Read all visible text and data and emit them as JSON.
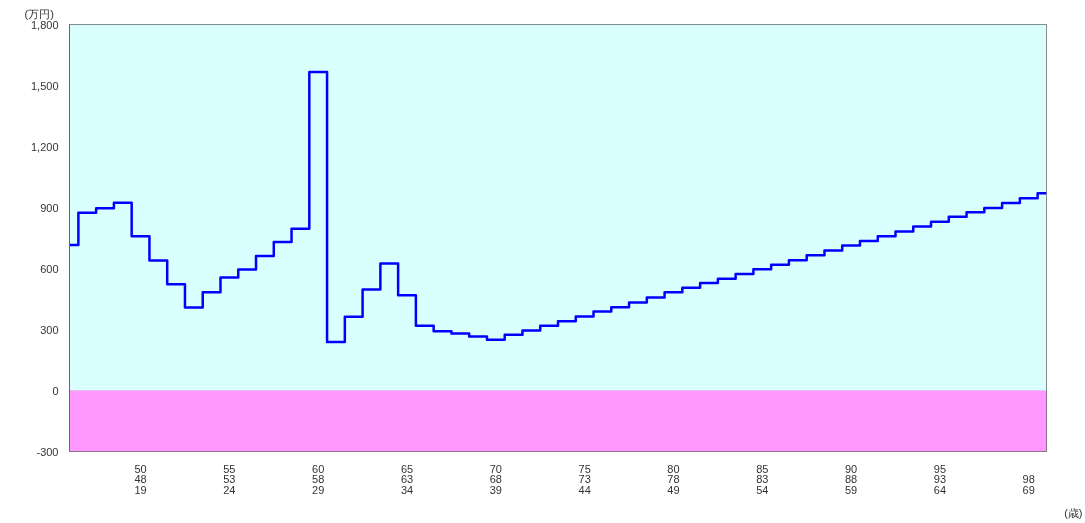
{
  "chart_data": {
    "type": "step",
    "xlabel": "(歳)",
    "ylabel": "(万円)",
    "categories": [
      null,
      null,
      null,
      null,
      "50\n48\n19",
      null,
      null,
      null,
      null,
      "55\n53\n24",
      null,
      null,
      null,
      null,
      "60\n58\n29",
      null,
      null,
      null,
      null,
      "65\n63\n34",
      null,
      null,
      null,
      null,
      "70\n68\n39",
      null,
      null,
      null,
      null,
      "75\n73\n44",
      null,
      null,
      null,
      null,
      "80\n78\n49",
      null,
      null,
      null,
      null,
      "85\n83\n54",
      null,
      null,
      null,
      null,
      "90\n88\n59",
      null,
      null,
      null,
      null,
      "95\n93\n64",
      null,
      null,
      null,
      null,
      "\n98\n69",
      null
    ],
    "series": [
      {
        "color": "#0000ff",
        "values": [
          716,
          874,
          896,
          923,
          759,
          639,
          523,
          408,
          483,
          556,
          595,
          662,
          730,
          796,
          1566,
          238,
          363,
          497,
          625,
          469,
          319,
          292,
          280,
          265,
          250,
          274,
          295,
          319,
          340,
          364,
          388,
          409,
          433,
          457,
          483,
          505,
          529,
          550,
          573,
          596,
          619,
          641,
          665,
          689,
          713,
          735,
          759,
          782,
          807,
          830,
          854,
          877,
          898,
          922,
          946,
          970
        ]
      }
    ],
    "ylim": [
      -300,
      1800
    ],
    "yticks": [
      -300,
      0,
      300,
      600,
      900,
      {
        "value": 1200,
        "label": "1,200"
      },
      {
        "value": 1500,
        "label": "1,500"
      },
      {
        "value": 1800,
        "label": "1,800"
      }
    ],
    "bands": [
      {
        "axis": "y",
        "from": 0,
        "to": 1800,
        "color": "#d9ffff"
      },
      {
        "axis": "y",
        "from": -300,
        "to": 0,
        "color": "#ff99ff"
      }
    ],
    "grid": "y"
  }
}
